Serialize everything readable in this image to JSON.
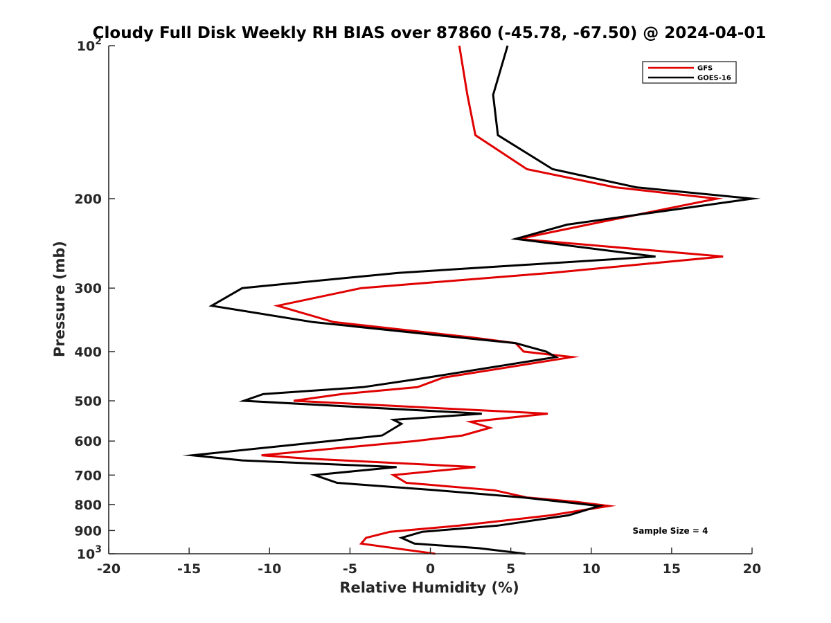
{
  "chart_data": {
    "type": "line",
    "title": "Cloudy Full Disk Weekly RH BIAS over 87860 (-45.78, -67.50) @ 2024-04-01",
    "xlabel": "Relative Humidity (%)",
    "ylabel": "Pressure (mb)",
    "xlim": [
      -20,
      20
    ],
    "ylim": [
      100,
      1000
    ],
    "y_scale": "log",
    "y_reversed": true,
    "grid": false,
    "legend_position": "top-right",
    "annotation": "Sample Size = 4",
    "x_ticks": [
      "-20",
      "-15",
      "-10",
      "-5",
      "0",
      "5",
      "10",
      "15",
      "20"
    ],
    "x_tick_values": [
      -20,
      -15,
      -10,
      -5,
      0,
      5,
      10,
      15,
      20
    ],
    "y_ticks": [
      {
        "value": 100,
        "base": "10",
        "exp": "2"
      },
      {
        "value": 200,
        "label": "200"
      },
      {
        "value": 300,
        "label": "300"
      },
      {
        "value": 400,
        "label": "400"
      },
      {
        "value": 500,
        "label": "500"
      },
      {
        "value": 600,
        "label": "600"
      },
      {
        "value": 700,
        "label": "700"
      },
      {
        "value": 800,
        "label": "800"
      },
      {
        "value": 900,
        "label": "900"
      },
      {
        "value": 1000,
        "base": "10",
        "exp": "3"
      }
    ],
    "series": [
      {
        "name": "GFS",
        "color": "#e00000",
        "points": [
          [
            1.8,
            100
          ],
          [
            2.3,
            125
          ],
          [
            2.8,
            150
          ],
          [
            6.0,
            175
          ],
          [
            11.5,
            190
          ],
          [
            17.8,
            200
          ],
          [
            9.8,
            225
          ],
          [
            5.5,
            240
          ],
          [
            18.2,
            260
          ],
          [
            7.5,
            280
          ],
          [
            -4.3,
            300
          ],
          [
            -9.5,
            325
          ],
          [
            -6.0,
            350
          ],
          [
            2.5,
            375
          ],
          [
            5.3,
            385
          ],
          [
            5.8,
            400
          ],
          [
            8.8,
            410
          ],
          [
            0.8,
            450
          ],
          [
            -0.8,
            470
          ],
          [
            -5.5,
            485
          ],
          [
            -8.5,
            500
          ],
          [
            7.3,
            530
          ],
          [
            2.5,
            550
          ],
          [
            3.7,
            565
          ],
          [
            2.0,
            585
          ],
          [
            -1.0,
            600
          ],
          [
            -10.5,
            640
          ],
          [
            -7.5,
            650
          ],
          [
            2.8,
            675
          ],
          [
            -2.3,
            700
          ],
          [
            -1.5,
            725
          ],
          [
            4.0,
            750
          ],
          [
            6.0,
            775
          ],
          [
            9.0,
            790
          ],
          [
            11.1,
            805
          ],
          [
            7.5,
            840
          ],
          [
            1.8,
            880
          ],
          [
            -2.5,
            905
          ],
          [
            -4.0,
            930
          ],
          [
            -4.3,
            955
          ],
          [
            0.3,
            1000
          ]
        ]
      },
      {
        "name": "GOES-16",
        "color": "#000000",
        "points": [
          [
            4.8,
            100
          ],
          [
            3.9,
            125
          ],
          [
            4.2,
            150
          ],
          [
            7.6,
            175
          ],
          [
            12.8,
            190
          ],
          [
            20.0,
            200
          ],
          [
            8.5,
            225
          ],
          [
            5.3,
            240
          ],
          [
            14.0,
            260
          ],
          [
            -2.0,
            280
          ],
          [
            -11.7,
            300
          ],
          [
            -13.6,
            325
          ],
          [
            -7.3,
            350
          ],
          [
            1.7,
            375
          ],
          [
            5.3,
            385
          ],
          [
            7.2,
            400
          ],
          [
            7.8,
            410
          ],
          [
            -0.2,
            450
          ],
          [
            -4.2,
            470
          ],
          [
            -10.4,
            485
          ],
          [
            -11.6,
            500
          ],
          [
            3.2,
            530
          ],
          [
            -2.3,
            545
          ],
          [
            -1.8,
            555
          ],
          [
            -3.0,
            585
          ],
          [
            -6.3,
            600
          ],
          [
            -14.8,
            640
          ],
          [
            -11.7,
            655
          ],
          [
            -2.1,
            675
          ],
          [
            -7.2,
            700
          ],
          [
            -5.8,
            725
          ],
          [
            0.4,
            750
          ],
          [
            5.8,
            775
          ],
          [
            10.5,
            805
          ],
          [
            8.6,
            840
          ],
          [
            4.2,
            880
          ],
          [
            -0.5,
            905
          ],
          [
            -1.8,
            930
          ],
          [
            -1.0,
            955
          ],
          [
            3.0,
            975
          ],
          [
            5.9,
            1000
          ]
        ]
      }
    ]
  }
}
